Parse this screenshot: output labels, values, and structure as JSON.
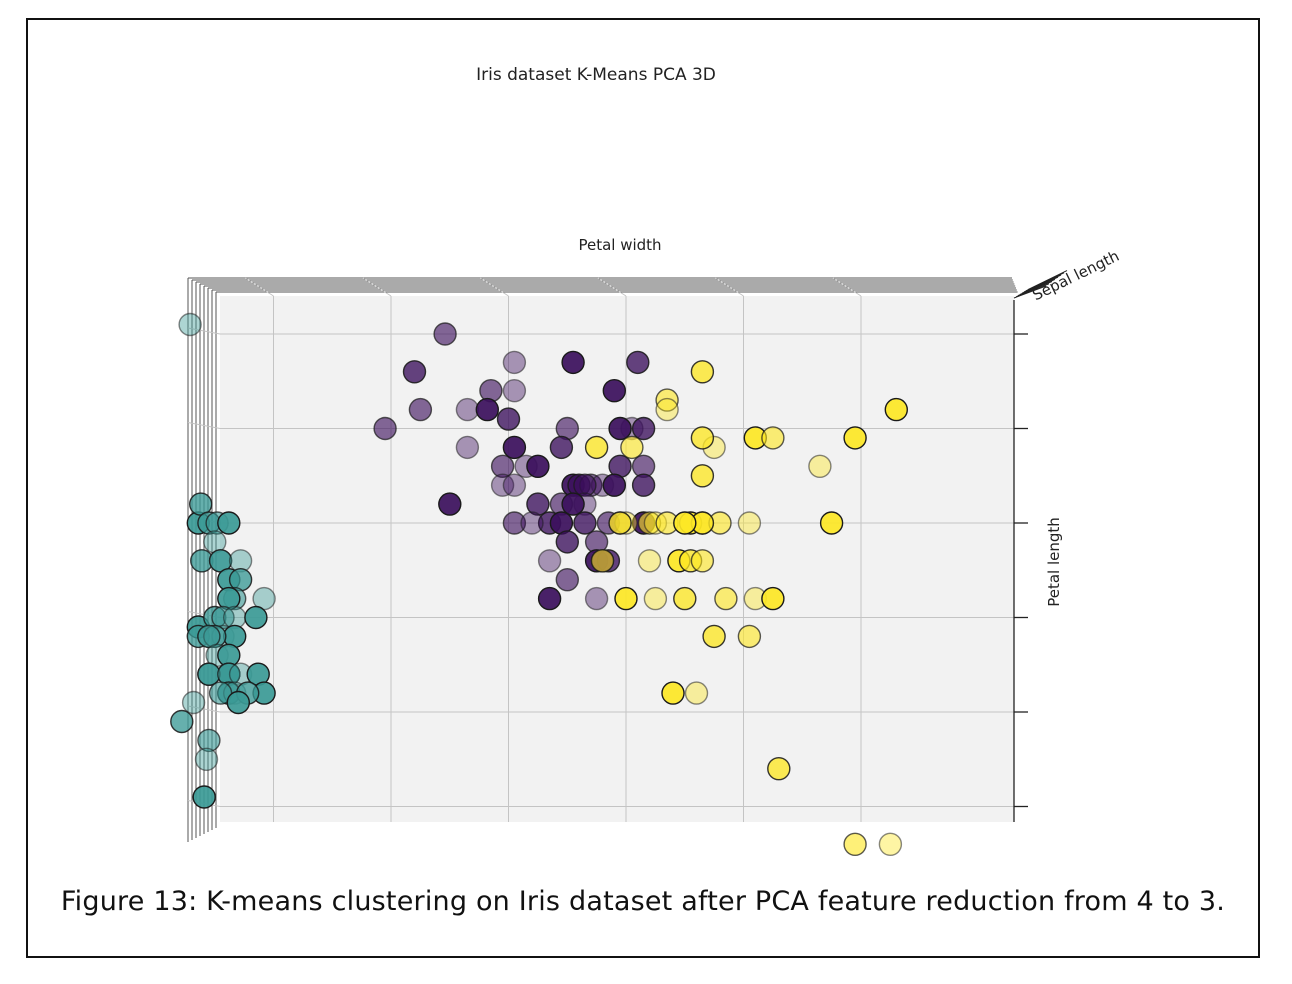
{
  "caption": "Figure 13: K-means clustering on Iris dataset after PCA feature reduction from 4 to 3.",
  "chart_data": {
    "type": "scatter",
    "projection": "3d",
    "title": "Iris dataset K-Means PCA 3D",
    "xlabel": "Petal width",
    "ylabel": "Petal length",
    "zlabel": "Sepal length",
    "x_range": [
      0,
      7
    ],
    "y_range": [
      -3,
      4
    ],
    "x_ticks": [
      0,
      1,
      2,
      3,
      4,
      5,
      6
    ],
    "y_ticks": [
      -3,
      -2,
      -1,
      0,
      1,
      2,
      3,
      4
    ],
    "grid": true,
    "legend": "none",
    "series": [
      {
        "color": "#3b9a96",
        "edge_color": "#1a1a1a",
        "points": [
          [
            0.29,
            2.1
          ],
          [
            0.36,
            0.0
          ],
          [
            0.38,
            0.2
          ],
          [
            0.39,
            -0.4
          ],
          [
            0.39,
            -0.4
          ],
          [
            0.36,
            -1.1
          ],
          [
            0.45,
            0.0
          ],
          [
            0.52,
            0.0
          ],
          [
            0.5,
            -0.2
          ],
          [
            0.62,
            0.0
          ],
          [
            0.55,
            -0.4
          ],
          [
            0.55,
            -0.4
          ],
          [
            0.72,
            -0.4
          ],
          [
            0.62,
            -0.6
          ],
          [
            0.72,
            -0.6
          ],
          [
            0.67,
            -0.8
          ],
          [
            0.92,
            -0.8
          ],
          [
            0.62,
            -0.8
          ],
          [
            0.5,
            -1.0
          ],
          [
            0.57,
            -1.0
          ],
          [
            0.67,
            -1.0
          ],
          [
            0.85,
            -1.0
          ],
          [
            0.36,
            -1.2
          ],
          [
            0.45,
            -1.2
          ],
          [
            0.57,
            -1.2
          ],
          [
            0.67,
            -1.2
          ],
          [
            0.5,
            -1.2
          ],
          [
            0.45,
            -1.2
          ],
          [
            0.52,
            -1.4
          ],
          [
            0.62,
            -1.4
          ],
          [
            0.62,
            -1.6
          ],
          [
            0.45,
            -1.6
          ],
          [
            0.45,
            -1.6
          ],
          [
            0.62,
            -1.6
          ],
          [
            0.45,
            -1.6
          ],
          [
            0.62,
            -1.6
          ],
          [
            0.72,
            -1.6
          ],
          [
            0.87,
            -1.6
          ],
          [
            0.62,
            -1.8
          ],
          [
            0.62,
            -1.8
          ],
          [
            0.67,
            -1.8
          ],
          [
            0.92,
            -1.8
          ],
          [
            0.78,
            -1.8
          ],
          [
            0.55,
            -1.8
          ],
          [
            0.32,
            -1.9
          ],
          [
            0.7,
            -1.9
          ],
          [
            0.22,
            -2.1
          ],
          [
            0.45,
            -2.3
          ],
          [
            0.43,
            -2.5
          ],
          [
            0.41,
            -2.9
          ]
        ]
      },
      {
        "color": "#3b0f5c",
        "edge_color": "#1a1a1a",
        "points": [
          [
            2.46,
            2.0
          ],
          [
            3.05,
            1.7
          ],
          [
            3.55,
            1.7
          ],
          [
            4.1,
            1.7
          ],
          [
            2.85,
            1.4
          ],
          [
            3.05,
            1.4
          ],
          [
            3.9,
            1.4
          ],
          [
            2.2,
            1.6
          ],
          [
            2.25,
            1.2
          ],
          [
            2.65,
            1.2
          ],
          [
            2.82,
            1.2
          ],
          [
            3.0,
            1.1
          ],
          [
            3.5,
            1.0
          ],
          [
            4.05,
            1.0
          ],
          [
            3.95,
            1.0
          ],
          [
            4.15,
            1.0
          ],
          [
            1.95,
            1.0
          ],
          [
            2.65,
            0.8
          ],
          [
            3.05,
            0.8
          ],
          [
            3.45,
            0.8
          ],
          [
            2.95,
            0.6
          ],
          [
            3.15,
            0.6
          ],
          [
            3.25,
            0.6
          ],
          [
            3.95,
            0.6
          ],
          [
            4.15,
            0.6
          ],
          [
            2.95,
            0.4
          ],
          [
            3.55,
            0.4
          ],
          [
            3.6,
            0.4
          ],
          [
            3.7,
            0.4
          ],
          [
            3.8,
            0.4
          ],
          [
            3.9,
            0.4
          ],
          [
            4.15,
            0.4
          ],
          [
            3.65,
            0.4
          ],
          [
            3.05,
            0.4
          ],
          [
            2.5,
            0.2
          ],
          [
            3.25,
            0.2
          ],
          [
            3.45,
            0.2
          ],
          [
            3.65,
            0.2
          ],
          [
            3.55,
            0.2
          ],
          [
            3.35,
            0.0
          ],
          [
            3.05,
            0.0
          ],
          [
            3.2,
            0.0
          ],
          [
            3.45,
            0.0
          ],
          [
            3.65,
            0.0
          ],
          [
            3.85,
            0.0
          ],
          [
            3.95,
            0.0
          ],
          [
            4.15,
            0.0
          ],
          [
            3.5,
            -0.2
          ],
          [
            3.75,
            -0.2
          ],
          [
            3.35,
            -0.4
          ],
          [
            3.75,
            -0.4
          ],
          [
            3.85,
            -0.4
          ],
          [
            3.5,
            -0.6
          ],
          [
            3.75,
            -0.8
          ],
          [
            3.35,
            -0.8
          ],
          [
            3.8,
            -0.4
          ]
        ]
      },
      {
        "color": "#fde725",
        "edge_color": "#1a1a1a",
        "points": [
          [
            4.65,
            1.6
          ],
          [
            4.35,
            1.3
          ],
          [
            4.35,
            1.2
          ],
          [
            6.3,
            1.2
          ],
          [
            3.75,
            0.8
          ],
          [
            4.05,
            0.8
          ],
          [
            4.75,
            0.8
          ],
          [
            5.1,
            0.9
          ],
          [
            4.65,
            0.5
          ],
          [
            5.25,
            0.9
          ],
          [
            5.65,
            0.6
          ],
          [
            5.95,
            0.9
          ],
          [
            4.65,
            0.9
          ],
          [
            4.2,
            0.0
          ],
          [
            4.25,
            0.0
          ],
          [
            4.55,
            0.0
          ],
          [
            4.65,
            0.0
          ],
          [
            4.8,
            0.0
          ],
          [
            5.05,
            0.0
          ],
          [
            5.75,
            0.0
          ],
          [
            4.65,
            0.0
          ],
          [
            4.35,
            0.0
          ],
          [
            4.0,
            0.0
          ],
          [
            4.5,
            0.0
          ],
          [
            3.95,
            0.0
          ],
          [
            3.8,
            -0.4
          ],
          [
            4.2,
            -0.4
          ],
          [
            4.45,
            -0.4
          ],
          [
            4.55,
            -0.4
          ],
          [
            4.65,
            -0.4
          ],
          [
            4.25,
            -0.8
          ],
          [
            4.0,
            -0.8
          ],
          [
            4.5,
            -0.8
          ],
          [
            4.85,
            -0.8
          ],
          [
            5.1,
            -0.8
          ],
          [
            5.25,
            -0.8
          ],
          [
            4.75,
            -1.2
          ],
          [
            5.05,
            -1.2
          ],
          [
            4.6,
            -1.8
          ],
          [
            4.4,
            -1.8
          ],
          [
            5.3,
            -2.6
          ],
          [
            5.95,
            -3.4
          ],
          [
            6.25,
            -3.4
          ]
        ]
      }
    ]
  }
}
